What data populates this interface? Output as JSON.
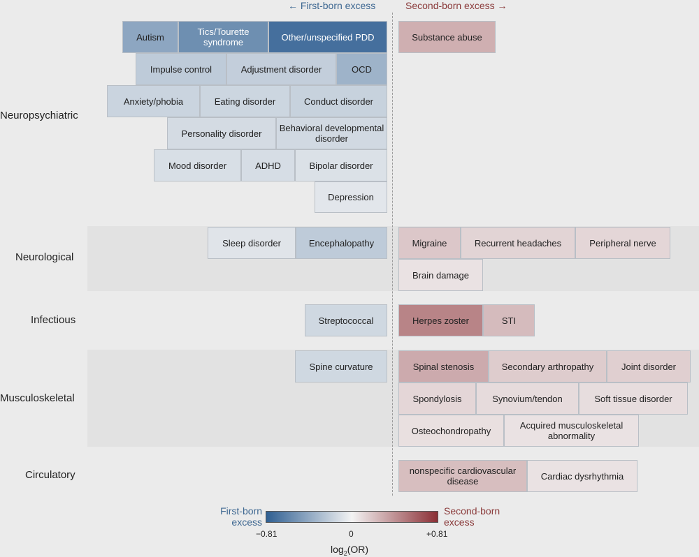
{
  "header": {
    "left": "← First-born excess",
    "right": "Second-born excess →"
  },
  "colors": {
    "blue": "#2f5f92",
    "red": "#8b2f35",
    "neutral": "#f3f3f3",
    "header_blue": "#3d6791",
    "header_red": "#8a3a3a"
  },
  "chart_data": {
    "type": "heatmap",
    "value_label": "log2(OR)",
    "range": [
      -0.81,
      0.81
    ],
    "categories": [
      {
        "name": "Neuropsychiatric",
        "first_born": [
          {
            "label": "Autism",
            "value": -0.42
          },
          {
            "label": "Tics/Tourette syndrome",
            "value": -0.55
          },
          {
            "label": "Other/unspecified PDD",
            "value": -0.72
          },
          {
            "label": "Impulse control",
            "value": -0.22
          },
          {
            "label": "Adjustment disorder",
            "value": -0.2
          },
          {
            "label": "OCD",
            "value": -0.35
          },
          {
            "label": "Anxiety/phobia",
            "value": -0.17
          },
          {
            "label": "Eating disorder",
            "value": -0.16
          },
          {
            "label": "Conduct disorder",
            "value": -0.18
          },
          {
            "label": "Personality disorder",
            "value": -0.13
          },
          {
            "label": "Behavioral developmental disorder",
            "value": -0.14
          },
          {
            "label": "Mood disorder",
            "value": -0.11
          },
          {
            "label": "ADHD",
            "value": -0.12
          },
          {
            "label": "Bipolar disorder",
            "value": -0.1
          },
          {
            "label": "Depression",
            "value": -0.07
          }
        ],
        "second_born": [
          {
            "label": "Substance abuse",
            "value": 0.28
          }
        ]
      },
      {
        "name": "Neurological",
        "first_born": [
          {
            "label": "Sleep disorder",
            "value": -0.08
          },
          {
            "label": "Encephalopathy",
            "value": -0.22
          }
        ],
        "second_born": [
          {
            "label": "Migraine",
            "value": 0.18
          },
          {
            "label": "Recurrent headaches",
            "value": 0.13
          },
          {
            "label": "Peripheral nerve",
            "value": 0.12
          },
          {
            "label": "Brain damage",
            "value": 0.07
          }
        ]
      },
      {
        "name": "Infectious",
        "first_born": [
          {
            "label": "Streptococcal",
            "value": -0.15
          }
        ],
        "second_born": [
          {
            "label": "Herpes zoster",
            "value": 0.46
          },
          {
            "label": "STI",
            "value": 0.23
          }
        ]
      },
      {
        "name": "Musculoskeletal",
        "first_born": [
          {
            "label": "Spine curvature",
            "value": -0.15
          }
        ],
        "second_born": [
          {
            "label": "Spinal stenosis",
            "value": 0.3
          },
          {
            "label": "Secondary arthropathy",
            "value": 0.16
          },
          {
            "label": "Joint disorder",
            "value": 0.15
          },
          {
            "label": "Spondylosis",
            "value": 0.12
          },
          {
            "label": "Synovium/tendon",
            "value": 0.1
          },
          {
            "label": "Soft tissue disorder",
            "value": 0.09
          },
          {
            "label": "Osteochondropathy",
            "value": 0.08
          },
          {
            "label": "Acquired musculoskeletal abnormality",
            "value": 0.07
          }
        ]
      },
      {
        "name": "Circulatory",
        "first_born": [],
        "second_born": [
          {
            "label": "nonspecific cardiovascular disease",
            "value": 0.22
          },
          {
            "label": "Cardiac dysrhythmia",
            "value": 0.07
          }
        ]
      }
    ]
  },
  "legend": {
    "left_label": "First-born excess",
    "right_label": "Second-born excess",
    "min_tick": "−0.81",
    "mid_tick": "0",
    "max_tick": "+0.81",
    "axis_title": "log2(OR)"
  }
}
